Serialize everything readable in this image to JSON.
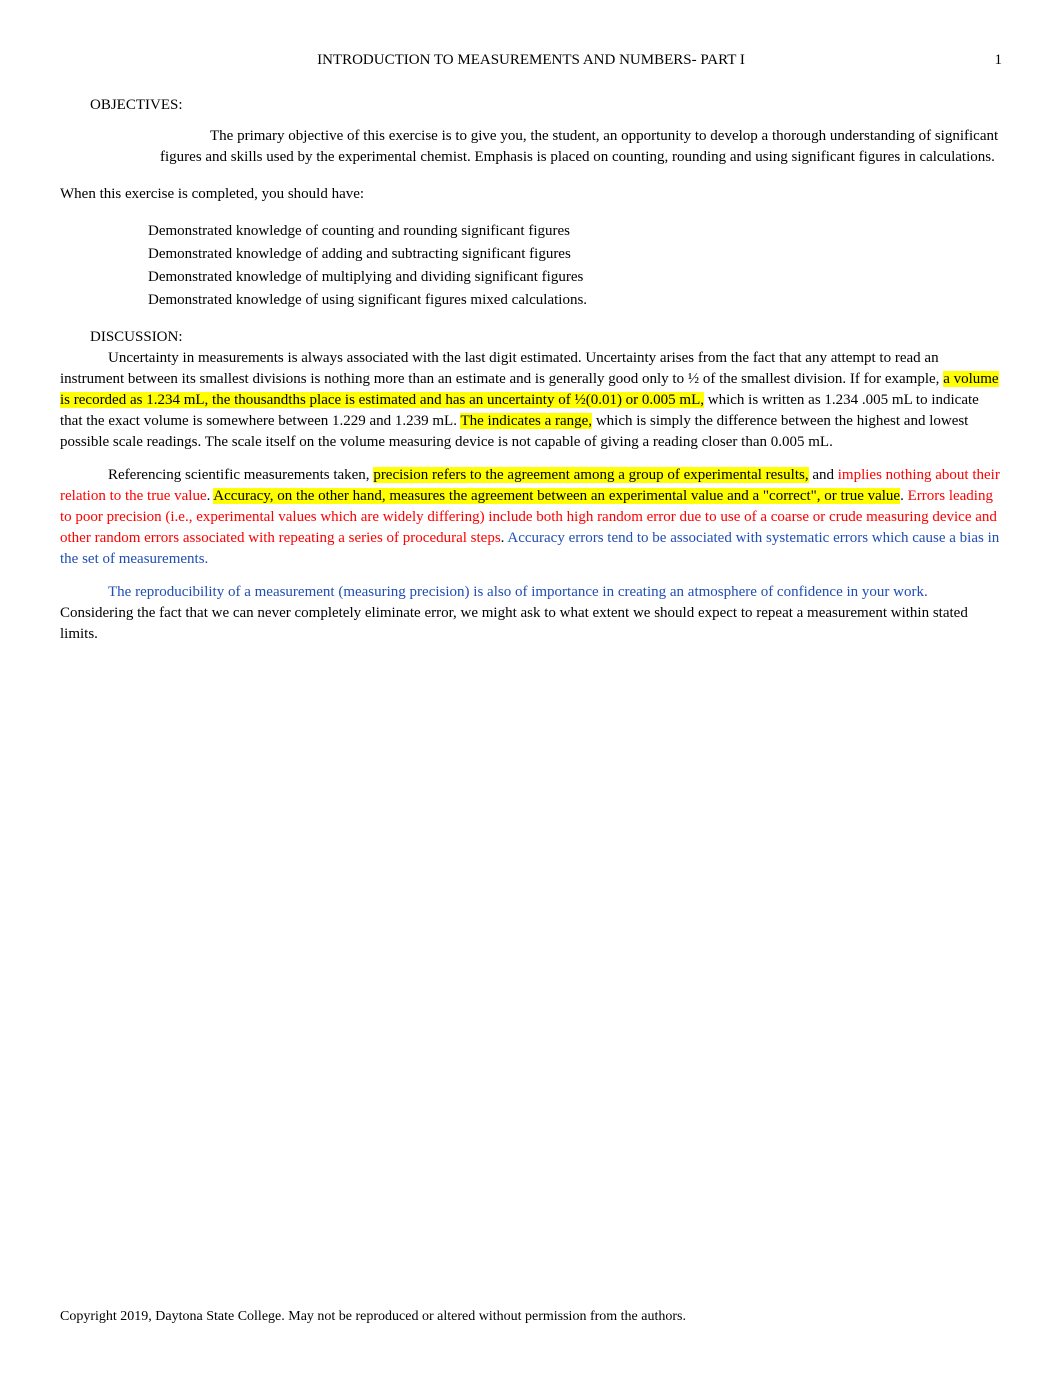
{
  "colors": {
    "highlight": "#ffff00",
    "red_text": "#ff0000",
    "blue_text": "#1f4eb4",
    "body_text": "#000000",
    "background": "#ffffff"
  },
  "typography": {
    "font_family": "Times New Roman",
    "body_fontsize_pt": 11,
    "line_height": 1.4
  },
  "header": {
    "title": "INTRODUCTION TO MEASUREMENTS AND NUMBERS- PART I",
    "page_number": "1"
  },
  "objectives": {
    "label": "OBJECTIVES:",
    "intro": "The primary objective of this exercise is to give you, the student, an opportunity to develop a thorough understanding of significant figures and skills used by the experimental chemist. Emphasis is placed on counting, rounding and using significant figures in calculations.",
    "lead_in": "When this exercise is completed, you should have:",
    "bullet_glyph": "",
    "items": [
      "Demonstrated knowledge of counting and rounding significant figures",
      "Demonstrated knowledge of adding and subtracting significant figures",
      "Demonstrated knowledge of multiplying and dividing significant figures",
      "Demonstrated knowledge of using significant figures mixed calculations."
    ]
  },
  "discussion": {
    "label": "DISCUSSION:",
    "p1": {
      "runs": [
        {
          "text": "Uncertainty in measurements is always associated with the last digit estimated. Uncertainty arises from the fact that any attempt to read an instrument between its smallest divisions is nothing more than an estimate and is generally good only to   ½ of the smallest division. If for example, "
        },
        {
          "text": " a volume is recorded as 1.234 mL, the thousandths place is estimated and ",
          "hl": true
        },
        {
          "text": "has an uncertainty of ½(0.01) or   0.005 mL,",
          "hl": true
        },
        {
          "text": " which is written as 1.234   .005 mL to indicate that the exact volume is somewhere between 1.229 and 1.239 mL. "
        },
        {
          "text": "The   indicates a range,",
          "hl": true
        },
        {
          "text": " which is simply the difference between the highest and lowest possible scale readings. The scale itself on the volume measuring device is not capable of giving a reading closer than 0.005 mL."
        }
      ]
    },
    "p2": {
      "runs": [
        {
          "text": "Referencing scientific measurements taken, "
        },
        {
          "text": "precision refers to the agreement among a group of experimental results,",
          "hl": true
        },
        {
          "text": " and "
        },
        {
          "text": "implies nothing about their relation to the true value",
          "red": true
        },
        {
          "text": ". "
        },
        {
          "text": "Accuracy, on the other hand, measures the agreement between an ",
          "hl": true
        },
        {
          "text": "experimental value and a \"correct\", or true value",
          "hl": true
        },
        {
          "text": ".  "
        },
        {
          "text": "Errors leading to poor precision (i.e., experimental values which are widely differing) include both high random error due to use of a coarse or crude measuring device and other random errors associated with repeating a series of procedural steps",
          "red": true
        },
        {
          "text": ".  "
        },
        {
          "text": "Accuracy errors tend to be associated with systematic errors which cause a bias in the set of measurements.",
          "blue": true
        }
      ]
    },
    "p3": {
      "runs": [
        {
          "text": "The reproducibility of a measurement (measuring precision) is also of importance in creating an atmosphere of confidence in your work. ",
          "blue": true
        },
        {
          "text": "Considering the fact that we can never completely eliminate error, we might ask to what extent we should expect to repeat a measurement within stated limits."
        }
      ]
    }
  },
  "footer": {
    "text": "Copyright 2019, Daytona State College. May not be reproduced or altered without permission from the authors."
  }
}
